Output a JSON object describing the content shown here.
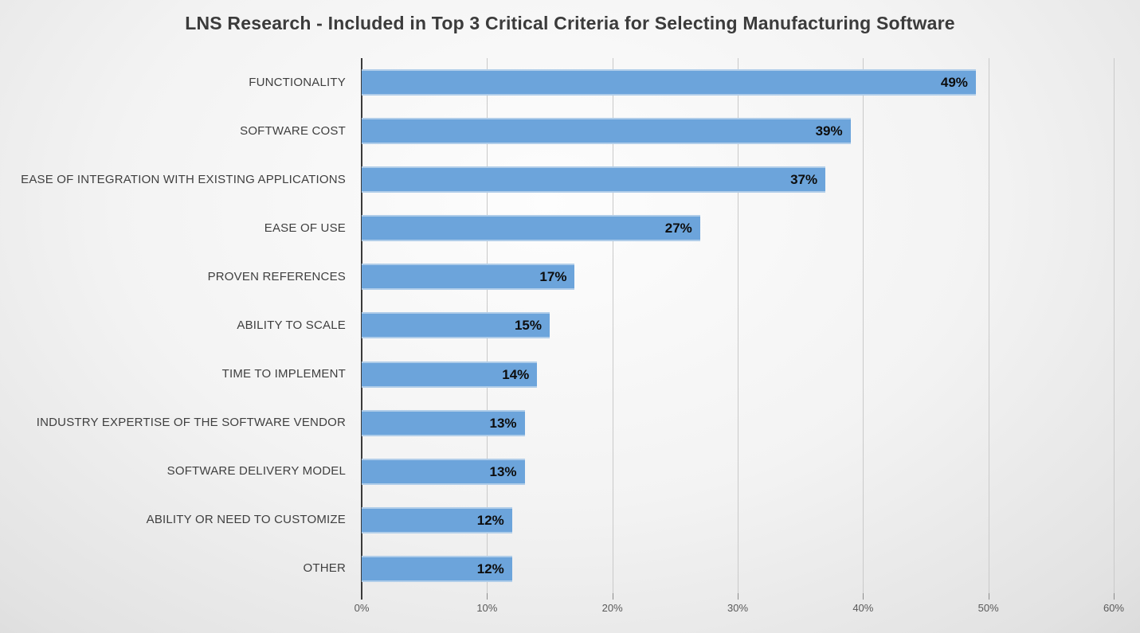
{
  "page": {
    "title": "LNS Research - Included in Top 3 Critical Criteria for Selecting Manufacturing Software"
  },
  "colors": {
    "bar_fill": "#6ca4db",
    "bar_edge": "#b0cde9",
    "title_text": "#3b3b3b",
    "category_text": "#3f3f3f",
    "value_text": "#0d0d0d",
    "axis_line": "#3a3a3a",
    "gridline": "#c9c9c9",
    "tick_label": "#595959"
  },
  "chart_data": {
    "type": "bar",
    "orientation": "horizontal",
    "title": "LNS Research - Included in Top 3 Critical Criteria for Selecting Manufacturing Software",
    "categories": [
      "FUNCTIONALITY",
      "SOFTWARE COST",
      "EASE OF INTEGRATION WITH EXISTING APPLICATIONS",
      "EASE OF USE",
      "PROVEN REFERENCES",
      "ABILITY TO SCALE",
      "TIME TO IMPLEMENT",
      "INDUSTRY EXPERTISE OF THE SOFTWARE VENDOR",
      "SOFTWARE DELIVERY MODEL",
      "ABILITY OR NEED TO CUSTOMIZE",
      "OTHER"
    ],
    "values": [
      49,
      39,
      37,
      27,
      17,
      15,
      14,
      13,
      13,
      12,
      12
    ],
    "value_labels": [
      "49%",
      "39%",
      "37%",
      "27%",
      "17%",
      "15%",
      "14%",
      "13%",
      "13%",
      "12%",
      "12%"
    ],
    "xlabel": "",
    "ylabel": "",
    "xlim": [
      0,
      60
    ],
    "x_ticks": [
      0,
      10,
      20,
      30,
      40,
      50,
      60
    ],
    "x_tick_labels": [
      "0%",
      "10%",
      "20%",
      "30%",
      "40%",
      "50%",
      "60%"
    ],
    "grid": "vertical",
    "legend": false,
    "data_labels": "inside-end"
  }
}
